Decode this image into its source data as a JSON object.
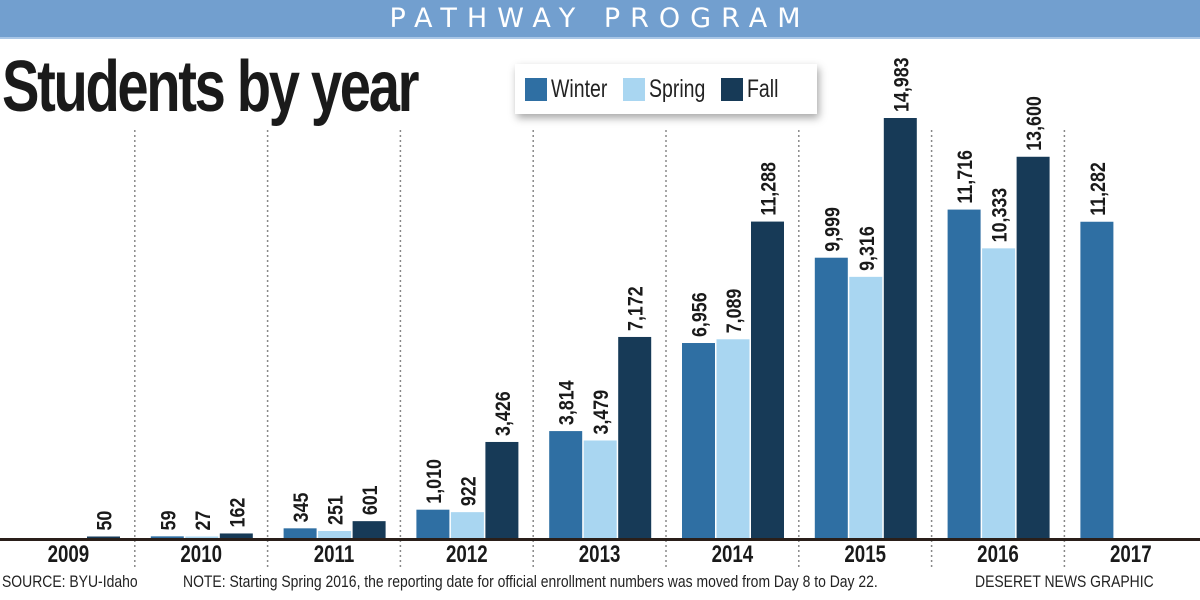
{
  "banner": "PATHWAY PROGRAM",
  "chart_data": {
    "type": "bar",
    "title": "Students by year",
    "categories": [
      "2009",
      "2010",
      "2011",
      "2012",
      "2013",
      "2014",
      "2015",
      "2016",
      "2017"
    ],
    "series": [
      {
        "name": "Winter",
        "color": "#2f6fa3",
        "values": [
          null,
          59,
          345,
          1010,
          3814,
          6956,
          9999,
          11716,
          11282
        ],
        "labels": [
          null,
          "59",
          "345",
          "1,010",
          "3,814",
          "6,956",
          "9,999",
          "11,716",
          "11,282"
        ]
      },
      {
        "name": "Spring",
        "color": "#a9d6f1",
        "values": [
          null,
          27,
          251,
          922,
          3479,
          7089,
          9316,
          10333,
          null
        ],
        "labels": [
          null,
          "27",
          "251",
          "922",
          "3,479",
          "7,089",
          "9,316",
          "10,333",
          null
        ]
      },
      {
        "name": "Fall",
        "color": "#173a57",
        "values": [
          50,
          162,
          601,
          3426,
          7172,
          11288,
          14983,
          13600,
          null
        ],
        "labels": [
          "50",
          "162",
          "601",
          "3,426",
          "7,172",
          "11,288",
          "14,983",
          "13,600",
          null
        ]
      }
    ],
    "ylim": [
      0,
      15000
    ],
    "legend": "top-center",
    "grid": "vertical dotted separators between years",
    "data_labels": "rotated vertical above bars"
  },
  "footer": {
    "source": "SOURCE: BYU-Idaho",
    "note": "NOTE: Starting Spring 2016, the reporting date for official enrollment numbers was moved from Day 8 to Day 22.",
    "credit": "DESERET NEWS GRAPHIC"
  }
}
